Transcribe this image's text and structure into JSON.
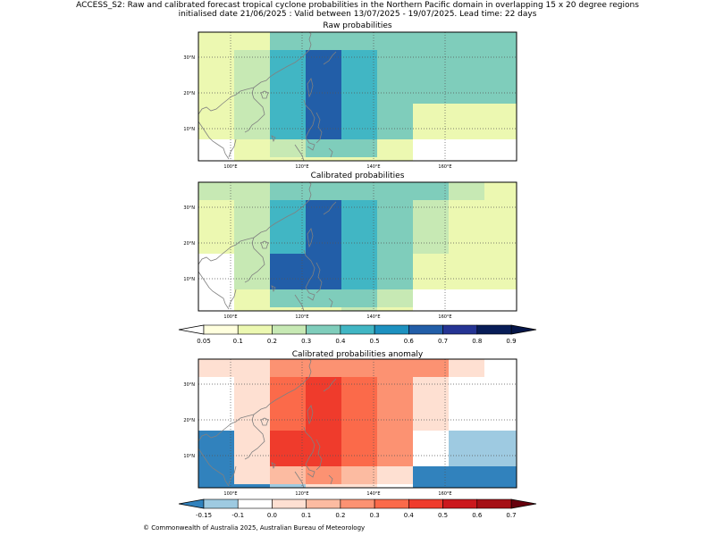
{
  "header": {
    "title": "ACCESS_S2: Raw and calibrated forecast tropical cyclone probabilities in the Northern Pacific domain in overlapping 15 x 20 degree regions",
    "subtitle": "initialised date 21/06/2025 :  Valid between 13/07/2025 - 19/07/2025. Lead time: 22 days"
  },
  "panels": [
    {
      "title": "Raw probabilities",
      "scale": "prob",
      "grid": [
        [
          0.15,
          0.15,
          0.35,
          0.35,
          0.35,
          0.35,
          0.35,
          0.3,
          0.3
        ],
        [
          0.15,
          0.25,
          0.45,
          0.6,
          0.45,
          0.35,
          0.3,
          0.3,
          0.3
        ],
        [
          0.15,
          0.25,
          0.45,
          0.6,
          0.45,
          0.35,
          0.3,
          0.3,
          0.3
        ],
        [
          0.1,
          0.25,
          0.45,
          0.6,
          0.45,
          0.3,
          0.15,
          0.15,
          0.15
        ],
        [
          0.0,
          0.15,
          0.25,
          0.3,
          0.3,
          0.15,
          0.0,
          0.0,
          0.0
        ],
        [
          0.0,
          0.1,
          0.1,
          0.1,
          0.1,
          0.15,
          0.0,
          0.0,
          0.0
        ]
      ]
    },
    {
      "title": "Calibrated probabilities",
      "scale": "prob",
      "grid": [
        [
          0.25,
          0.25,
          0.35,
          0.35,
          0.3,
          0.3,
          0.3,
          0.25,
          0.15
        ],
        [
          0.15,
          0.25,
          0.45,
          0.6,
          0.45,
          0.3,
          0.25,
          0.15,
          0.15
        ],
        [
          0.15,
          0.25,
          0.45,
          0.6,
          0.45,
          0.3,
          0.25,
          0.15,
          0.15
        ],
        [
          0.0,
          0.25,
          0.6,
          0.6,
          0.45,
          0.3,
          0.15,
          0.1,
          0.1
        ],
        [
          0.0,
          0.15,
          0.3,
          0.35,
          0.3,
          0.25,
          0.0,
          0.0,
          0.0
        ],
        [
          0.0,
          0.15,
          0.1,
          0.15,
          0.25,
          0.15,
          0.0,
          0.0,
          0.0
        ]
      ]
    },
    {
      "title": "Calibrated probabilities anomaly",
      "scale": "anom",
      "grid": [
        [
          0.05,
          0.05,
          0.25,
          0.25,
          0.25,
          0.25,
          0.25,
          0.05,
          -0.01
        ],
        [
          -0.01,
          0.05,
          0.35,
          0.45,
          0.35,
          0.25,
          0.05,
          -0.01,
          -0.01
        ],
        [
          -0.01,
          0.05,
          0.35,
          0.45,
          0.35,
          0.25,
          0.05,
          -0.01,
          -0.01
        ],
        [
          -0.2,
          0.05,
          0.45,
          0.45,
          0.35,
          0.25,
          -0.01,
          -0.12,
          -0.12
        ],
        [
          -0.2,
          0.05,
          0.15,
          0.25,
          0.15,
          0.05,
          -0.2,
          -0.2,
          -0.2
        ],
        [
          -0.2,
          -0.2,
          -0.12,
          0.05,
          0.05,
          -0.01,
          -0.2,
          -0.2,
          -0.2
        ]
      ]
    }
  ],
  "lon_ticks": [
    "100°E",
    "120°E",
    "140°E",
    "160°E"
  ],
  "lat_ticks": [
    "30°N",
    "20°N",
    "10°N"
  ],
  "prob_colorbar": {
    "labels": [
      "0.05",
      "0.1",
      "0.2",
      "0.3",
      "0.4",
      "0.5",
      "0.6",
      "0.7",
      "0.8",
      "0.9"
    ],
    "colors": [
      "#ffffde",
      "#ecf8b1",
      "#c7e9b4",
      "#7fcdbb",
      "#41b6c4",
      "#1d91c0",
      "#225ea8",
      "#253494",
      "#081d58"
    ],
    "over_color": "#061649",
    "under_color": "#ffffff"
  },
  "anom_colorbar": {
    "labels": [
      "-0.15",
      "-0.1",
      "0.0",
      "0.1",
      "0.2",
      "0.3",
      "0.4",
      "0.5",
      "0.6",
      "0.7"
    ],
    "colors": [
      "#9ecae1",
      "#ffffff",
      "#fee0d2",
      "#fcbba1",
      "#fc9272",
      "#fb6a4a",
      "#ef3b2c",
      "#cb181d",
      "#a50f15"
    ],
    "over_color": "#67000d",
    "under_color": "#3182bd"
  },
  "footer": {
    "copyright": "© Commonwealth of Australia 2025, Australian Bureau of Meteorology"
  }
}
